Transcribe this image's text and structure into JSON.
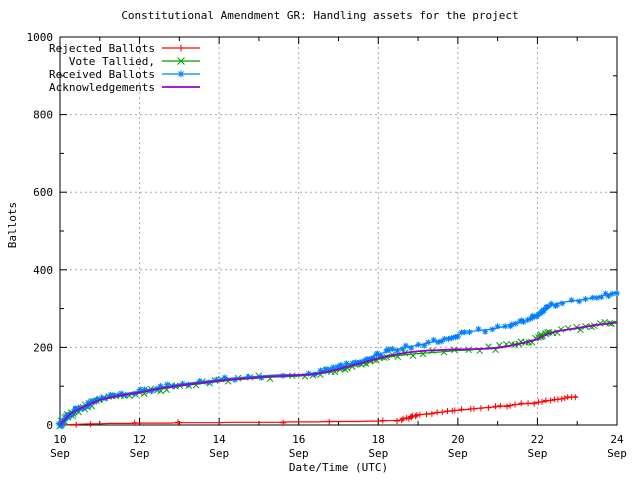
{
  "chart_data": {
    "type": "line",
    "title": "Constitutional Amendment GR: Handling assets for the project",
    "xlabel": "Date/Time (UTC)",
    "ylabel": "Ballots",
    "ylim": [
      0,
      1000
    ],
    "y_major_ticks": [
      0,
      200,
      400,
      600,
      800,
      1000
    ],
    "y_minor_ticks": [
      100,
      300,
      500,
      700,
      900
    ],
    "x_range_days": [
      0,
      14
    ],
    "x_major_ticks": [
      {
        "day": 0,
        "label": "10",
        "month": "Sep"
      },
      {
        "day": 2,
        "label": "12",
        "month": "Sep"
      },
      {
        "day": 4,
        "label": "14",
        "month": "Sep"
      },
      {
        "day": 6,
        "label": "16",
        "month": "Sep"
      },
      {
        "day": 8,
        "label": "18",
        "month": "Sep"
      },
      {
        "day": 10,
        "label": "20",
        "month": "Sep"
      },
      {
        "day": 12,
        "label": "22",
        "month": "Sep"
      },
      {
        "day": 14,
        "label": "24",
        "month": "Sep"
      }
    ],
    "x_minor_ticks": [
      1,
      3,
      5,
      7,
      9,
      11,
      13
    ],
    "grid": true,
    "grid_color": "#a8a8a8",
    "border_color": "#000000",
    "legend_position": "top-left",
    "series": [
      {
        "name": "Rejected Ballots",
        "color": "#ff0000",
        "marker": "plus",
        "x": [
          0,
          0.25,
          0.5,
          0.75,
          1,
          1.25,
          1.5,
          1.75,
          2,
          2.25,
          2.5,
          2.75,
          3,
          3.25,
          3.5,
          3.75,
          4,
          4.25,
          4.5,
          4.75,
          5,
          5.25,
          5.5,
          5.75,
          6,
          6.25,
          6.5,
          6.75,
          7,
          7.25,
          7.5,
          7.75,
          8,
          8.25,
          8.5,
          8.75,
          9,
          9.25,
          9.5,
          9.75,
          10,
          10.25,
          10.5,
          10.75,
          11,
          11.25,
          11.5,
          11.75,
          12,
          12.25,
          12.5,
          12.75,
          13
        ],
        "y": [
          0,
          1,
          2,
          3,
          3,
          4,
          4,
          4,
          5,
          5,
          5,
          5,
          6,
          6,
          6,
          6,
          6,
          7,
          7,
          7,
          7,
          7,
          7,
          8,
          8,
          8,
          8,
          9,
          9,
          9,
          9,
          10,
          10,
          11,
          12,
          18,
          26,
          29,
          32,
          35,
          38,
          40,
          43,
          45,
          47,
          50,
          53,
          55,
          58,
          62,
          66,
          70,
          74
        ]
      },
      {
        "name": "Vote Tallied,",
        "color": "#00a000",
        "marker": "cross",
        "x": [
          0,
          0.25,
          0.5,
          0.75,
          1,
          1.25,
          1.5,
          1.75,
          2,
          2.25,
          2.5,
          2.75,
          3,
          3.25,
          3.5,
          3.75,
          4,
          4.25,
          4.5,
          4.75,
          5,
          5.25,
          5.5,
          5.75,
          6,
          6.25,
          6.5,
          6.75,
          7,
          7.25,
          7.5,
          7.75,
          8,
          8.25,
          8.5,
          8.75,
          9,
          9.25,
          9.5,
          9.75,
          10,
          10.25,
          10.5,
          10.75,
          11,
          11.25,
          11.5,
          11.75,
          12,
          12.25,
          12.5,
          12.75,
          13,
          13.25,
          13.5,
          13.75,
          14
        ],
        "y": [
          0,
          27,
          40,
          52,
          63,
          69,
          74,
          78,
          82,
          87,
          92,
          96,
          100,
          103,
          106,
          109,
          112,
          115,
          117,
          119,
          121,
          123,
          124,
          125,
          126,
          128,
          131,
          136,
          141,
          148,
          155,
          162,
          169,
          175,
          179,
          182,
          184,
          186,
          188,
          190,
          192,
          193,
          195,
          197,
          200,
          204,
          209,
          215,
          222,
          236,
          243,
          246,
          249,
          253,
          258,
          262,
          267
        ]
      },
      {
        "name": "Received Ballots",
        "color": "#0080ff",
        "marker": "star",
        "x": [
          0,
          0.25,
          0.5,
          0.75,
          1,
          1.25,
          1.5,
          1.75,
          2,
          2.25,
          2.5,
          2.75,
          3,
          3.25,
          3.5,
          3.75,
          4,
          4.25,
          4.5,
          4.75,
          5,
          5.25,
          5.5,
          5.75,
          6,
          6.25,
          6.5,
          6.75,
          7,
          7.25,
          7.5,
          7.75,
          8,
          8.25,
          8.5,
          8.75,
          9,
          9.25,
          9.5,
          9.75,
          10,
          10.25,
          10.5,
          10.75,
          11,
          11.25,
          11.5,
          11.75,
          12,
          12.25,
          12.5,
          12.75,
          13,
          13.25,
          13.5,
          13.75,
          14
        ],
        "y": [
          0,
          30,
          44,
          56,
          68,
          74,
          79,
          83,
          87,
          92,
          97,
          101,
          105,
          108,
          111,
          114,
          117,
          120,
          122,
          124,
          126,
          128,
          129,
          130,
          130,
          132,
          136,
          141,
          148,
          156,
          164,
          173,
          182,
          190,
          196,
          201,
          206,
          211,
          217,
          224,
          233,
          240,
          243,
          246,
          250,
          255,
          262,
          272,
          284,
          303,
          314,
          318,
          321,
          325,
          330,
          336,
          343
        ]
      },
      {
        "name": "Acknowledgements",
        "color": "#9400d3",
        "marker": "none",
        "x": [
          0,
          0.25,
          0.5,
          0.75,
          1,
          1.25,
          1.5,
          1.75,
          2,
          2.25,
          2.5,
          2.75,
          3,
          3.25,
          3.5,
          3.75,
          4,
          4.25,
          4.5,
          4.75,
          5,
          5.25,
          5.5,
          5.75,
          6,
          6.25,
          6.5,
          6.75,
          7,
          7.25,
          7.5,
          7.75,
          8,
          8.25,
          8.5,
          8.75,
          9,
          9.25,
          9.5,
          9.75,
          10,
          10.25,
          10.5,
          10.75,
          11,
          11.25,
          11.5,
          11.75,
          12,
          12.25,
          12.5,
          12.75,
          13,
          13.25,
          13.5,
          13.75,
          14
        ],
        "y": [
          0,
          28,
          42,
          54,
          65,
          71,
          76,
          80,
          84,
          89,
          94,
          98,
          102,
          105,
          108,
          111,
          114,
          117,
          119,
          121,
          123,
          125,
          126,
          127,
          128,
          130,
          133,
          138,
          144,
          151,
          158,
          165,
          172,
          178,
          183,
          187,
          190,
          192,
          193,
          194,
          195,
          195,
          196,
          197,
          199,
          203,
          208,
          214,
          221,
          234,
          242,
          246,
          250,
          254,
          258,
          261,
          264
        ]
      }
    ]
  }
}
